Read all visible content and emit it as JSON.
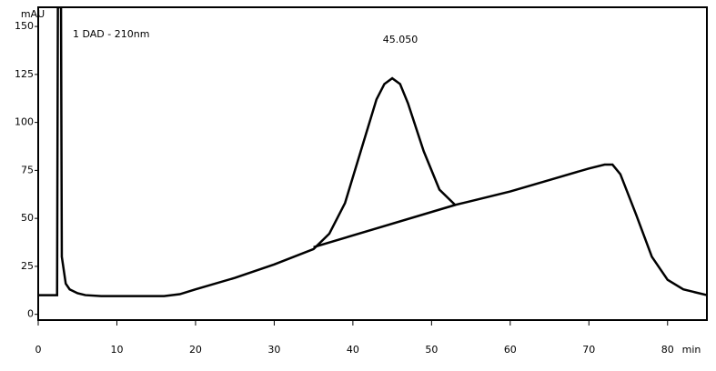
{
  "chart_data": {
    "type": "line",
    "ylabel": "mAU",
    "xlabel": "min",
    "annotations": [
      "1 DAD - 210nm",
      "45.050"
    ],
    "x": [
      0,
      2.4,
      2.5,
      2.9,
      3.0,
      3.5,
      4,
      5,
      6,
      8,
      12,
      16,
      18,
      20,
      25,
      30,
      35,
      37,
      39,
      41,
      43,
      44,
      45,
      46,
      47,
      49,
      51,
      53,
      55,
      60,
      65,
      70,
      72,
      73,
      74,
      76,
      78,
      80,
      82,
      85
    ],
    "series": [
      {
        "color": "#000000",
        "values": [
          10,
          10,
          160,
          160,
          30,
          16,
          13,
          11,
          10,
          9.5,
          9.5,
          9.5,
          10.5,
          13,
          19,
          26,
          34,
          42,
          58,
          85,
          112,
          120,
          123,
          120,
          110,
          85,
          65,
          57,
          59,
          64,
          70,
          76,
          78,
          78,
          73,
          52,
          30,
          18,
          13,
          10
        ]
      },
      {
        "color": "#000000",
        "x": [
          35,
          53
        ],
        "values": [
          35,
          57
        ]
      }
    ],
    "xlim": [
      0,
      85
    ],
    "xticks": [
      0,
      10,
      20,
      30,
      40,
      50,
      60,
      70,
      80
    ],
    "ylim": [
      -3,
      160
    ],
    "yticks": [
      0,
      25,
      50,
      75,
      100,
      125,
      150
    ]
  }
}
